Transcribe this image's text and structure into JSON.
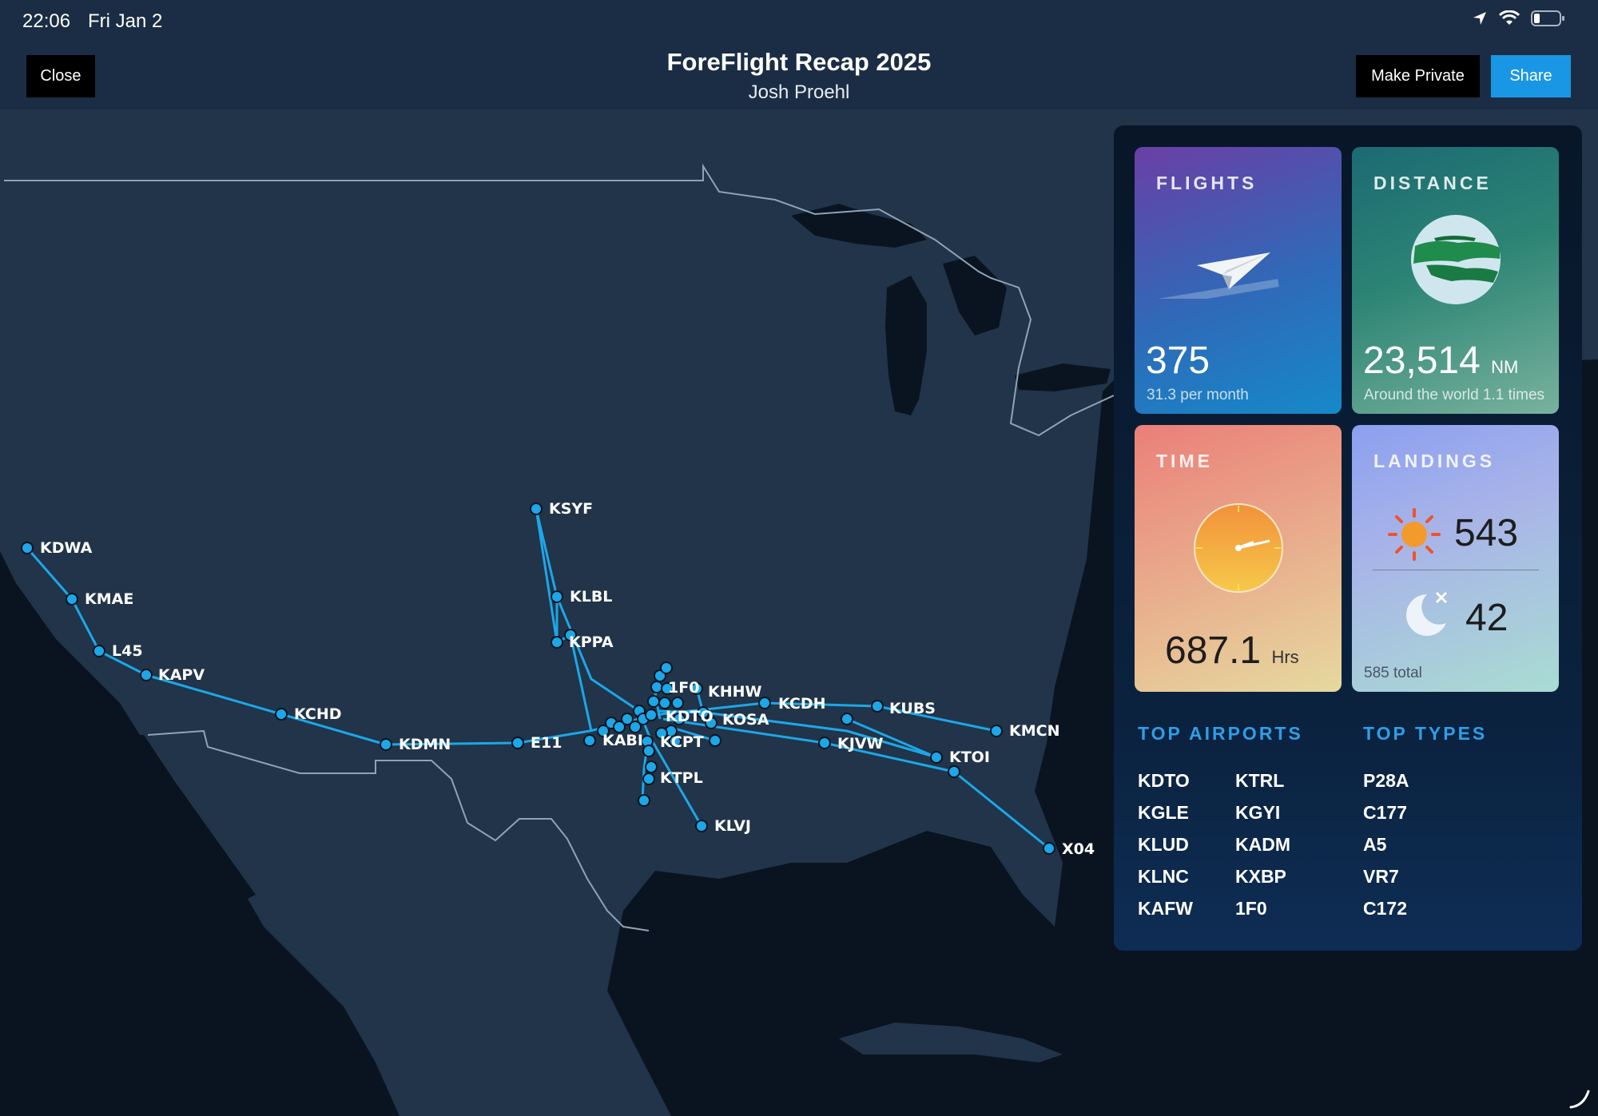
{
  "status": {
    "time": "22:06",
    "date": "Fri Jan 2"
  },
  "header": {
    "title": "ForeFlight Recap 2025",
    "subtitle": "Josh Proehl"
  },
  "buttons": {
    "close": "Close",
    "make_private": "Make Private",
    "share": "Share"
  },
  "cards": {
    "flights": {
      "label": "FLIGHTS",
      "value": "375",
      "sub": "31.3 per month"
    },
    "distance": {
      "label": "DISTANCE",
      "value": "23,514",
      "unit": "NM",
      "sub": "Around the world 1.1 times"
    },
    "time": {
      "label": "TIME",
      "value": "687.1",
      "unit": "Hrs"
    },
    "landings": {
      "label": "LANDINGS",
      "day": "543",
      "night": "42",
      "sub": "585 total"
    }
  },
  "top_airports": {
    "title": "TOP AIRPORTS",
    "items": [
      "KDTO",
      "KGLE",
      "KLUD",
      "KLNC",
      "KAFW",
      "KTRL",
      "KGYI",
      "KADM",
      "KXBP",
      "1F0"
    ]
  },
  "top_types": {
    "title": "TOP TYPES",
    "items": [
      "P28A",
      "C177",
      "A5",
      "VR7",
      "C172"
    ]
  },
  "map_labels": [
    "KSYF",
    "KDWA",
    "KMAE",
    "KLBL",
    "L45",
    "KPPA",
    "KAPV",
    "1F0",
    "KHHW",
    "KCDH",
    "KUBS",
    "KCHD",
    "KDTO",
    "KOSA",
    "KMCN",
    "KDMN",
    "E11",
    "KABI",
    "KCPT",
    "KJVW",
    "KTOI",
    "KTPL",
    "KLVJ",
    "X04"
  ],
  "colors": {
    "route": "#1ca7e8",
    "share": "#1a97e4",
    "section_title": "#2f9ee6"
  }
}
